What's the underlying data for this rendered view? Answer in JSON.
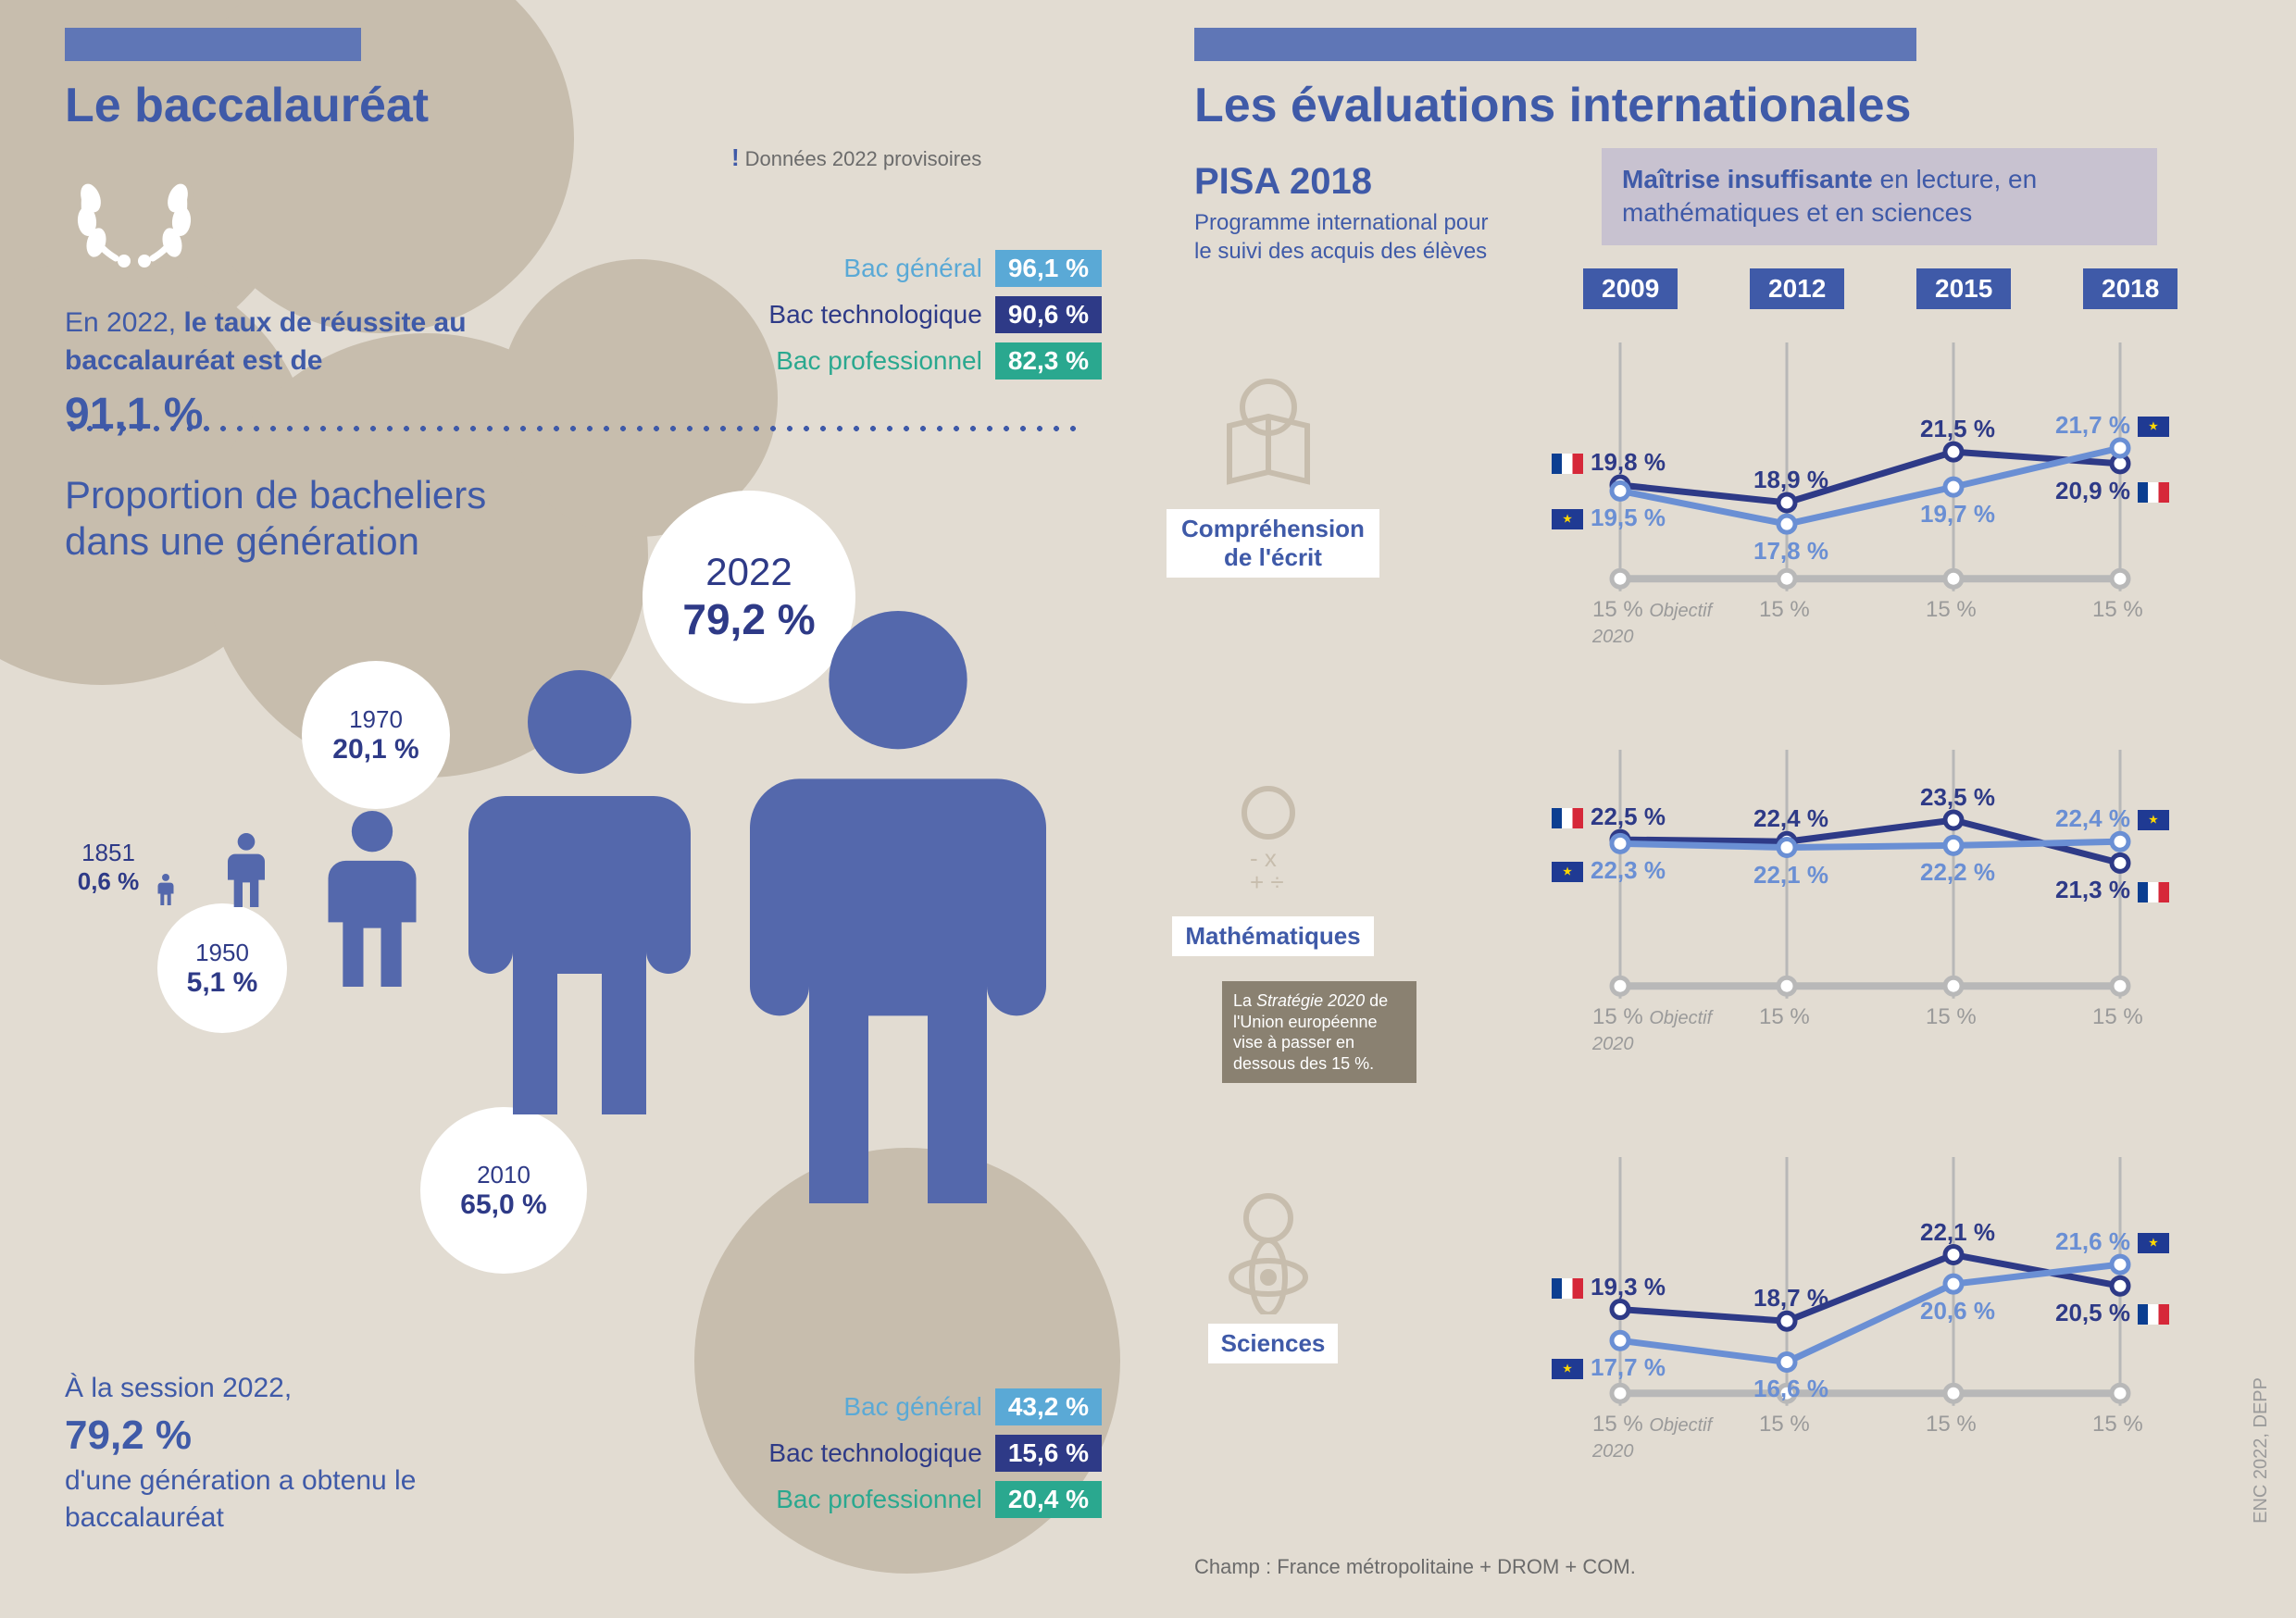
{
  "colors": {
    "page_bg": "#e2dcd2",
    "cloud": "#c7bdad",
    "primary": "#3f5aa8",
    "primary_dark": "#2e3a87",
    "header_bar": "#5f76b6",
    "bac_general": "#5aa9d6",
    "bac_techno": "#2e3a87",
    "bac_pro": "#2aa88f",
    "grey_text": "#6b6b6b",
    "light_grey": "#9a9a9a",
    "maitrise_bg": "#c8c2d0",
    "strategie_bg": "#8a8171",
    "axis_grey": "#b8b8b8",
    "fr_line": "#2e3a87",
    "eu_line": "#6a8fd4"
  },
  "left": {
    "title": "Le baccalauréat",
    "intro_prefix": "En 2022, ",
    "intro_bold": "le taux de réussite au baccalauréat est de",
    "intro_pct": "91,1 %",
    "note": "Données 2022 provisoires",
    "success": {
      "rows": [
        {
          "label": "Bac général",
          "value": "96,1 %",
          "color": "#5aa9d6",
          "label_color": "#5aa9d6"
        },
        {
          "label": "Bac technologique",
          "value": "90,6 %",
          "color": "#2e3a87",
          "label_color": "#2e3a87"
        },
        {
          "label": "Bac professionnel",
          "value": "82,3 %",
          "color": "#2aa88f",
          "label_color": "#2aa88f"
        }
      ]
    },
    "prop_title_l1": "Proportion de bacheliers",
    "prop_title_l2": "dans une génération",
    "generation": [
      {
        "year": "1851",
        "pct": "0,6 %",
        "person_h": 34
      },
      {
        "year": "1950",
        "pct": "5,1 %",
        "person_h": 80
      },
      {
        "year": "1970",
        "pct": "20,1 %",
        "person_h": 190
      },
      {
        "year": "2010",
        "pct": "65,0 %",
        "person_h": 480
      },
      {
        "year": "2022",
        "pct": "79,2 %",
        "person_h": 640
      }
    ],
    "footer_prefix": "À la session 2022,",
    "footer_big": "79,2 %",
    "footer_rest": "d'une génération a obtenu le baccalauréat",
    "breakdown": {
      "rows": [
        {
          "label": "Bac général",
          "value": "43,2 %",
          "color": "#5aa9d6",
          "label_color": "#5aa9d6"
        },
        {
          "label": "Bac technologique",
          "value": "15,6 %",
          "color": "#2e3a87",
          "label_color": "#2e3a87"
        },
        {
          "label": "Bac professionnel",
          "value": "20,4 %",
          "color": "#2aa88f",
          "label_color": "#2aa88f"
        }
      ]
    }
  },
  "right": {
    "title": "Les évaluations internationales",
    "pisa_title": "PISA 2018",
    "pisa_sub": "Programme international pour le suivi des acquis des élèves",
    "maitrise_bold": "Maîtrise insuffisante",
    "maitrise_rest": " en lecture, en mathématiques et en sciences",
    "years": [
      "2009",
      "2012",
      "2015",
      "2018"
    ],
    "target_label": "15 %",
    "objectif_label": "Objectif 2020",
    "charts": [
      {
        "label": "Compréhension de l'écrit",
        "fr": [
          19.8,
          18.9,
          21.5,
          20.9
        ],
        "fr_labels": [
          "19,8 %",
          "18,9 %",
          "21,5 %",
          "20,9 %"
        ],
        "eu": [
          19.5,
          17.8,
          19.7,
          21.7
        ],
        "eu_labels": [
          "19,5 %",
          "17,8 %",
          "19,7 %",
          "21,7 %"
        ]
      },
      {
        "label": "Mathématiques",
        "fr": [
          22.5,
          22.4,
          23.5,
          21.3
        ],
        "fr_labels": [
          "22,5 %",
          "22,4 %",
          "23,5 %",
          "21,3 %"
        ],
        "eu": [
          22.3,
          22.1,
          22.2,
          22.4
        ],
        "eu_labels": [
          "22,3 %",
          "22,1 %",
          "22,2 %",
          "22,4 %"
        ]
      },
      {
        "label": "Sciences",
        "fr": [
          19.3,
          18.7,
          22.1,
          20.5
        ],
        "fr_labels": [
          "19,3 %",
          "18,7 %",
          "22,1 %",
          "20,5 %"
        ],
        "eu": [
          17.7,
          16.6,
          20.6,
          21.6
        ],
        "eu_labels": [
          "17,7 %",
          "16,6 %",
          "20,6 %",
          "21,6 %"
        ]
      }
    ],
    "strategie_l1": "La ",
    "strategie_it": "Stratégie 2020",
    "strategie_l2": " de l'Union européenne vise à passer en dessous des 15 %.",
    "champ": "Champ : France métropolitaine + DROM + COM.",
    "source": "ENC 2022, DEPP"
  }
}
